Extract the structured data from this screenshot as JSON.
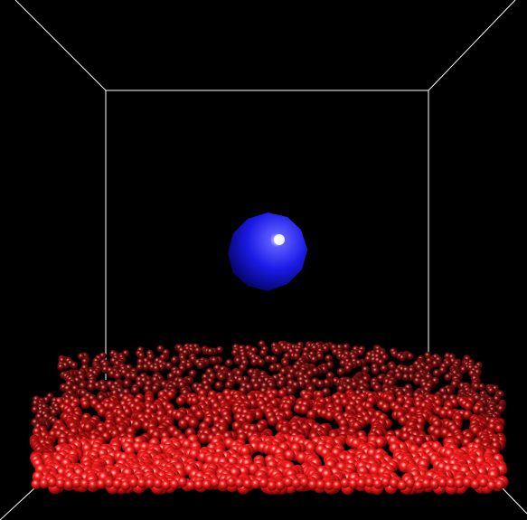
{
  "scene": {
    "background_color": "#000000",
    "box_edge_color": "#ffffff",
    "sphere": {
      "color": "#1a1aff",
      "highlight_color": "#ffffff",
      "shade_color": "#000066"
    },
    "particles": {
      "color": "#ff1a1a",
      "highlight_color": "#ffd0d0",
      "shade_color": "#330000"
    }
  }
}
